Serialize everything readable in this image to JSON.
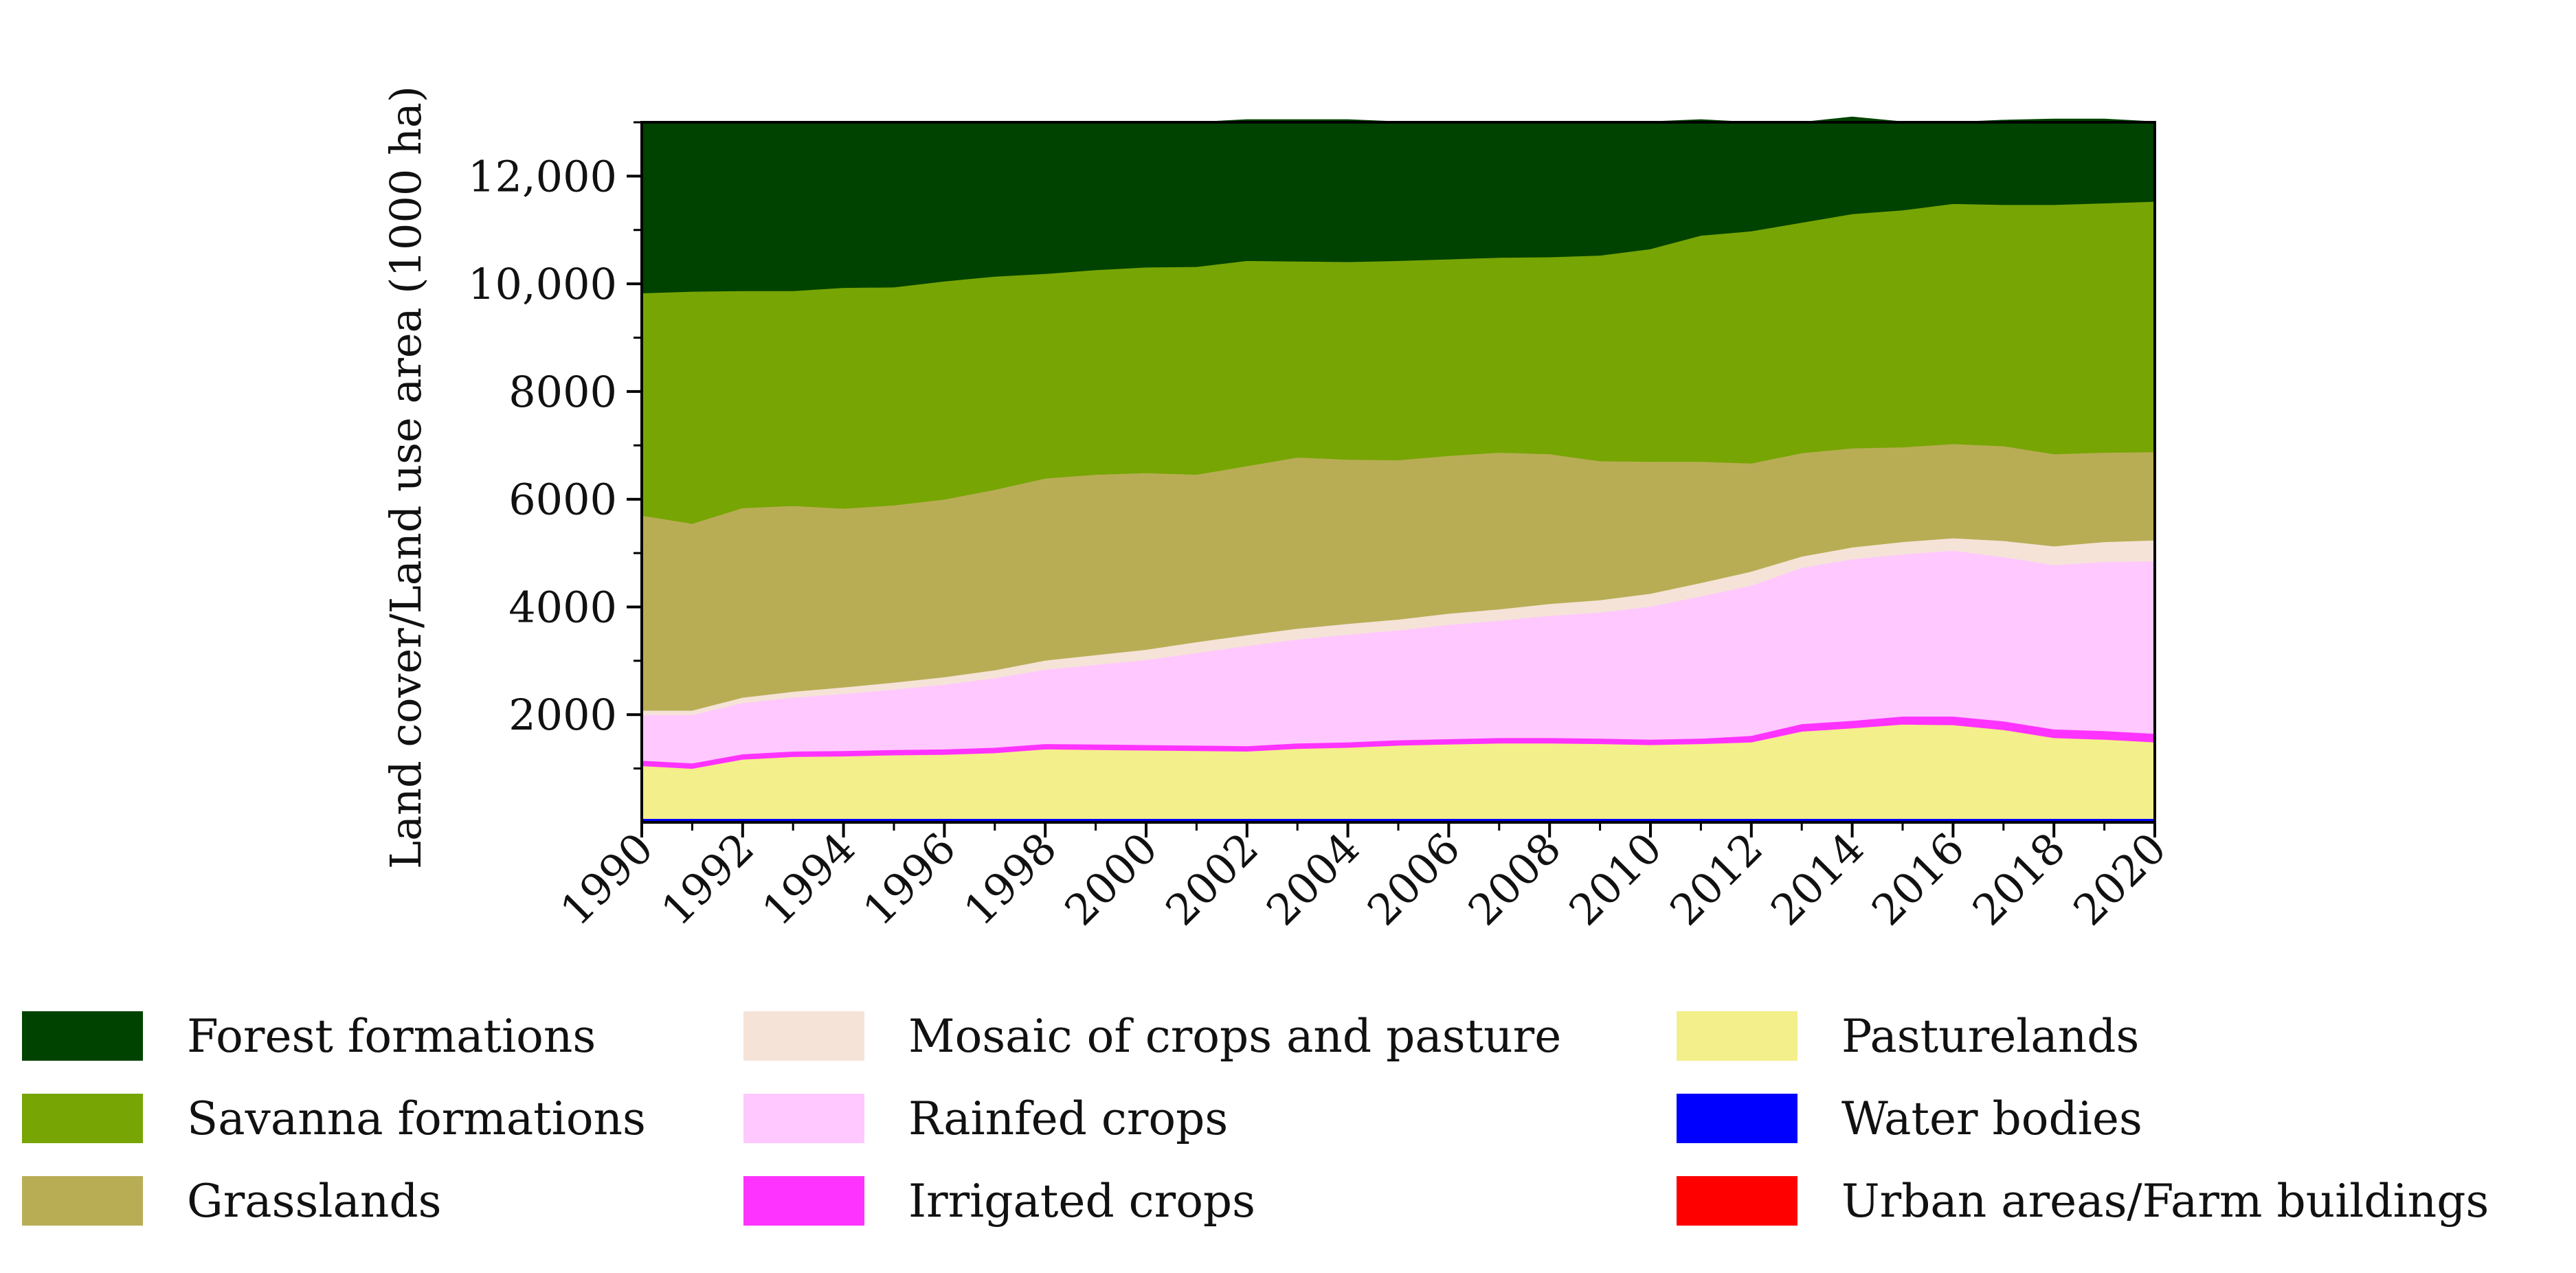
{
  "chart_data": {
    "type": "area",
    "stacked": true,
    "title": "",
    "xlabel": "",
    "ylabel": "Land cover/Land use area (1000 ha)",
    "xlim": [
      1990,
      2020
    ],
    "ylim": [
      0,
      13000
    ],
    "x": [
      1990,
      1991,
      1992,
      1993,
      1994,
      1995,
      1996,
      1997,
      1998,
      1999,
      2000,
      2001,
      2002,
      2003,
      2004,
      2005,
      2006,
      2007,
      2008,
      2009,
      2010,
      2011,
      2012,
      2013,
      2014,
      2015,
      2016,
      2017,
      2018,
      2019,
      2020
    ],
    "x_ticks": [
      1990,
      1992,
      1994,
      1996,
      1998,
      2000,
      2002,
      2004,
      2006,
      2008,
      2010,
      2012,
      2014,
      2016,
      2018,
      2020
    ],
    "x_tick_labels": [
      "1990",
      "1992",
      "1994",
      "1996",
      "1998",
      "2000",
      "2002",
      "2004",
      "2006",
      "2008",
      "2010",
      "2012",
      "2014",
      "2016",
      "2018",
      "2020"
    ],
    "y_ticks": [
      2000,
      4000,
      6000,
      8000,
      10000,
      12000
    ],
    "y_tick_labels": [
      "2000",
      "4000",
      "6000",
      "8000",
      "10,000",
      "12,000"
    ],
    "legend_position": "bottom",
    "series": [
      {
        "name": "Urban areas/Farm buildings",
        "color": "#ff0000",
        "values": [
          10,
          10,
          10,
          10,
          10,
          10,
          10,
          10,
          10,
          10,
          10,
          10,
          10,
          10,
          10,
          10,
          10,
          10,
          10,
          10,
          10,
          10,
          10,
          10,
          10,
          10,
          10,
          10,
          10,
          10,
          10
        ]
      },
      {
        "name": "Water bodies",
        "color": "#0000ff",
        "values": [
          60,
          60,
          60,
          60,
          60,
          60,
          60,
          60,
          60,
          60,
          60,
          60,
          60,
          60,
          60,
          60,
          60,
          60,
          60,
          60,
          60,
          60,
          60,
          60,
          60,
          60,
          60,
          60,
          60,
          60,
          60
        ]
      },
      {
        "name": "Pasturelands",
        "color": "#f3ef8a",
        "values": [
          980,
          930,
          1100,
          1150,
          1160,
          1180,
          1190,
          1220,
          1290,
          1280,
          1270,
          1260,
          1250,
          1300,
          1320,
          1360,
          1380,
          1400,
          1400,
          1390,
          1370,
          1390,
          1420,
          1620,
          1680,
          1750,
          1740,
          1650,
          1500,
          1470,
          1420
        ]
      },
      {
        "name": "Irrigated crops",
        "color": "#ff33ff",
        "values": [
          100,
          100,
          100,
          100,
          100,
          100,
          100,
          100,
          100,
          100,
          100,
          100,
          100,
          100,
          100,
          100,
          100,
          100,
          100,
          100,
          100,
          100,
          120,
          140,
          140,
          150,
          160,
          160,
          160,
          160,
          160
        ]
      },
      {
        "name": "Rainfed crops",
        "color": "#ffc8ff",
        "values": [
          850,
          900,
          950,
          1000,
          1060,
          1120,
          1200,
          1290,
          1380,
          1480,
          1580,
          1720,
          1860,
          1930,
          2000,
          2040,
          2120,
          2180,
          2270,
          2340,
          2470,
          2640,
          2790,
          2900,
          3000,
          3010,
          3080,
          3050,
          3050,
          3140,
          3200
        ]
      },
      {
        "name": "Mosaic of crops and pasture",
        "color": "#f5e3d8",
        "values": [
          80,
          80,
          100,
          110,
          120,
          130,
          140,
          150,
          170,
          180,
          190,
          200,
          200,
          200,
          200,
          200,
          210,
          210,
          220,
          230,
          240,
          250,
          260,
          210,
          220,
          230,
          230,
          300,
          350,
          370,
          390
        ]
      },
      {
        "name": "Grasslands",
        "color": "#b8ad55",
        "values": [
          3620,
          3470,
          3520,
          3450,
          3320,
          3290,
          3300,
          3350,
          3380,
          3350,
          3280,
          3110,
          3140,
          3180,
          3050,
          2960,
          2930,
          2910,
          2780,
          2580,
          2450,
          2250,
          2010,
          1920,
          1840,
          1760,
          1750,
          1760,
          1710,
          1660,
          1640
        ]
      },
      {
        "name": "Savanna formations",
        "color": "#77a503",
        "values": [
          4130,
          4310,
          4030,
          3990,
          4100,
          4050,
          4050,
          3960,
          3800,
          3800,
          3820,
          3860,
          3810,
          3640,
          3670,
          3700,
          3650,
          3620,
          3660,
          3820,
          3950,
          4200,
          4310,
          4280,
          4350,
          4400,
          4460,
          4480,
          4630,
          4630,
          4650
        ]
      },
      {
        "name": "Forest formations",
        "color": "#004300",
        "values": [
          3170,
          3140,
          3130,
          3130,
          3080,
          3060,
          2960,
          2860,
          2810,
          2740,
          2700,
          2680,
          2620,
          2630,
          2640,
          2580,
          2550,
          2520,
          2500,
          2470,
          2360,
          2150,
          2020,
          1860,
          1800,
          1640,
          1510,
          1570,
          1590,
          1560,
          1480
        ]
      }
    ],
    "legend_entries": [
      "Forest formations",
      "Savanna formations",
      "Grasslands",
      "Mosaic of crops and pasture",
      "Rainfed crops",
      "Irrigated crops",
      "Pasturelands",
      "Water bodies",
      "Urban areas/Farm buildings"
    ]
  }
}
